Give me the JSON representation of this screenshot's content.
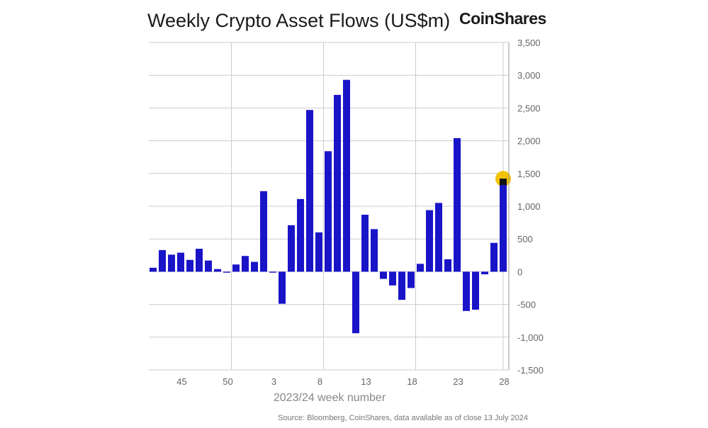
{
  "header": {
    "title": "Weekly Crypto Asset Flows (US$m)",
    "brand": "CoinShares"
  },
  "footer": {
    "source": "Source: Bloomberg, CoinShares, data available as of close 13 July 2024"
  },
  "colors": {
    "bar": "#1a14c8",
    "highlight_bar": "#111111",
    "highlight_marker": "#f2c200",
    "grid": "#cccccc",
    "axis_text": "#666666"
  },
  "chart_data": {
    "type": "bar",
    "xlabel": "2023/24 week number",
    "ylabel": "",
    "ylim": [
      -1500,
      3500
    ],
    "yticks": [
      3500,
      3000,
      2500,
      2000,
      1500,
      1000,
      500,
      0,
      -500,
      -1000,
      -1500
    ],
    "ytick_labels": [
      "3,500",
      "3,000",
      "2,500",
      "2,000",
      "1,500",
      "1,000",
      "500",
      "0",
      "-500",
      "-1,000",
      "-1,500"
    ],
    "x_tick_labels": [
      {
        "week_index": 3,
        "label": "45"
      },
      {
        "week_index": 8,
        "label": "50"
      },
      {
        "week_index": 13,
        "label": "3"
      },
      {
        "week_index": 18,
        "label": "8"
      },
      {
        "week_index": 23,
        "label": "13"
      },
      {
        "week_index": 28,
        "label": "18"
      },
      {
        "week_index": 33,
        "label": "23"
      },
      {
        "week_index": 38,
        "label": "28"
      }
    ],
    "vertical_grid_week_index": [
      9,
      19,
      29,
      38.5
    ],
    "values": [
      60,
      330,
      260,
      290,
      180,
      350,
      170,
      40,
      -15,
      110,
      240,
      150,
      1230,
      -15,
      -490,
      710,
      1110,
      2470,
      600,
      1840,
      2700,
      2930,
      -940,
      870,
      650,
      -110,
      -210,
      -430,
      -250,
      120,
      940,
      1050,
      190,
      2040,
      -600,
      -580,
      -40,
      440,
      1420
    ],
    "highlight_index": 38,
    "grid": true,
    "legend": "none"
  }
}
